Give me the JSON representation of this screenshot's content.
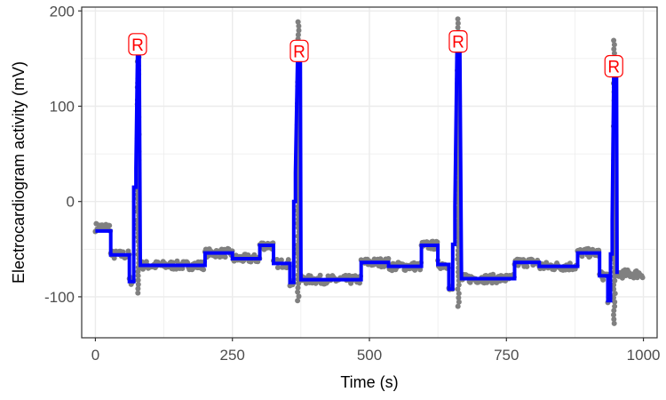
{
  "chart_data": {
    "type": "line",
    "xlabel": "Time (s)",
    "ylabel": "Electrocardiogram activity (mV)",
    "xlim": [
      -25,
      1025
    ],
    "ylim": [
      -143,
      204
    ],
    "x_ticks": [
      0,
      250,
      500,
      750,
      1000
    ],
    "y_ticks": [
      -100,
      0,
      100,
      200
    ],
    "grid": true,
    "colors": {
      "raw_points": "#808080",
      "segmented_line": "#0000ff",
      "peak_labels": "#ff0000",
      "panel_background": "#ffffff",
      "grid": "#ebebeb"
    },
    "series": [
      {
        "name": "",
        "kind": "scatter",
        "segments": [
          {
            "x0": 0,
            "x1": 28,
            "y": -27
          },
          {
            "x0": 28,
            "x1": 62,
            "y": -56
          },
          {
            "x0": 62,
            "x1": 70,
            "y": -83
          },
          {
            "x0": 82,
            "x1": 200,
            "y": -67
          },
          {
            "x0": 200,
            "x1": 250,
            "y": -54
          },
          {
            "x0": 250,
            "x1": 300,
            "y": -60
          },
          {
            "x0": 300,
            "x1": 325,
            "y": -46
          },
          {
            "x0": 325,
            "x1": 355,
            "y": -65
          },
          {
            "x0": 355,
            "x1": 362,
            "y": -85
          },
          {
            "x0": 375,
            "x1": 485,
            "y": -82
          },
          {
            "x0": 485,
            "x1": 535,
            "y": -64
          },
          {
            "x0": 535,
            "x1": 595,
            "y": -68
          },
          {
            "x0": 595,
            "x1": 625,
            "y": -46
          },
          {
            "x0": 625,
            "x1": 645,
            "y": -66
          },
          {
            "x0": 645,
            "x1": 652,
            "y": -92
          },
          {
            "x0": 668,
            "x1": 765,
            "y": -81
          },
          {
            "x0": 765,
            "x1": 810,
            "y": -64
          },
          {
            "x0": 810,
            "x1": 880,
            "y": -68
          },
          {
            "x0": 880,
            "x1": 920,
            "y": -54
          },
          {
            "x0": 920,
            "x1": 935,
            "y": -78
          },
          {
            "x0": 935,
            "x1": 940,
            "y": -102
          },
          {
            "x0": 952,
            "x1": 1000,
            "y": -76
          }
        ],
        "spikes": [
          {
            "x": 78,
            "min": -96,
            "max": 168
          },
          {
            "x": 370,
            "min": -104,
            "max": 190
          },
          {
            "x": 662,
            "min": -110,
            "max": 193
          },
          {
            "x": 947,
            "min": -128,
            "max": 173
          }
        ]
      },
      {
        "name": "",
        "kind": "line",
        "x": [
          0,
          28,
          28,
          62,
          62,
          70,
          70,
          74,
          74,
          77,
          80,
          82,
          82,
          200,
          200,
          250,
          250,
          300,
          300,
          325,
          325,
          355,
          355,
          362,
          362,
          365,
          365,
          369,
          374,
          375,
          375,
          485,
          485,
          535,
          535,
          595,
          595,
          625,
          625,
          645,
          645,
          652,
          652,
          656,
          656,
          660,
          665,
          668,
          668,
          765,
          765,
          810,
          810,
          880,
          880,
          920,
          920,
          935,
          935,
          940,
          940,
          943,
          943,
          946,
          951,
          952
        ],
        "y": [
          -31,
          -31,
          -56,
          -56,
          -84,
          -84,
          15,
          15,
          35,
          160,
          160,
          -67,
          -67,
          -67,
          -54,
          -54,
          -60,
          -60,
          -46,
          -46,
          -65,
          -65,
          -85,
          -85,
          0,
          0,
          30,
          157,
          157,
          -82,
          -82,
          -82,
          -64,
          -64,
          -68,
          -68,
          -46,
          -46,
          -66,
          -66,
          -92,
          -92,
          -45,
          -45,
          -5,
          165,
          165,
          -81,
          -81,
          -81,
          -64,
          -64,
          -68,
          -68,
          -54,
          -54,
          -78,
          -78,
          -104,
          -104,
          -55,
          -55,
          -20,
          137,
          137,
          -76
        ]
      }
    ],
    "annotations": [
      {
        "text": "R",
        "x": 77,
        "y": 165
      },
      {
        "text": "R",
        "x": 372,
        "y": 158
      },
      {
        "text": "R",
        "x": 662,
        "y": 168
      },
      {
        "text": "R",
        "x": 946,
        "y": 142
      }
    ]
  }
}
